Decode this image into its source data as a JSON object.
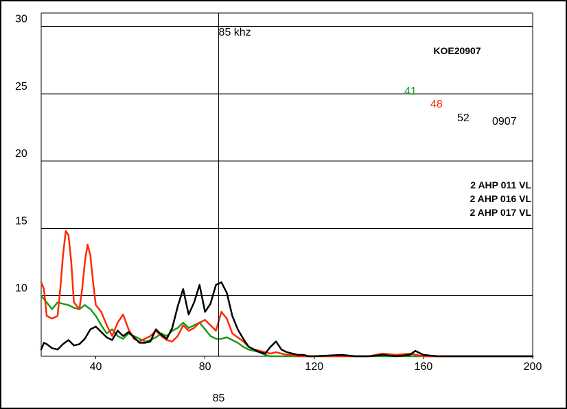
{
  "chart_data": {
    "type": "line",
    "id_label": "KOE20907",
    "info_lines": [
      "2 AHP 011 VL",
      "2 AHP 016 VL",
      "2 AHP 017 VL"
    ],
    "xlim": [
      20,
      200
    ],
    "ylim": [
      5.5,
      31
    ],
    "x_ticks": [
      40,
      80,
      120,
      160,
      200
    ],
    "y_ticks": [
      10,
      15,
      20,
      25,
      30
    ],
    "marker": {
      "x": 85,
      "top_label": "85 khz",
      "bottom_label": "85",
      "color": "#9a6b45"
    },
    "series_tags": [
      {
        "text": "41",
        "color": "#1a9a1a"
      },
      {
        "text": "48",
        "color": "#ff2a00"
      },
      {
        "text": "52",
        "color": "#000000"
      },
      {
        "text": "0907",
        "color": "#000000"
      }
    ],
    "series": [
      {
        "color": "#1a9a1a",
        "x": [
          20,
          22,
          24,
          26,
          28,
          30,
          32,
          34,
          36,
          38,
          40,
          42,
          44,
          46,
          48,
          50,
          52,
          54,
          56,
          58,
          60,
          62,
          64,
          66,
          68,
          70,
          72,
          74,
          76,
          78,
          80,
          82,
          84,
          86,
          88,
          90,
          92,
          94,
          96,
          98,
          100,
          102,
          104,
          106,
          108,
          110,
          112,
          114,
          116,
          118,
          120,
          130,
          140,
          150,
          160,
          170,
          180,
          190,
          200
        ],
        "y": [
          10.0,
          9.5,
          9.0,
          9.5,
          9.4,
          9.3,
          9.1,
          9.0,
          9.3,
          9.0,
          8.5,
          7.8,
          7.2,
          7.5,
          7.0,
          6.8,
          7.2,
          7.0,
          6.8,
          6.6,
          6.7,
          6.9,
          7.2,
          7.0,
          7.4,
          7.6,
          8.0,
          7.6,
          7.8,
          8.0,
          7.5,
          7.0,
          6.8,
          6.8,
          6.9,
          6.7,
          6.5,
          6.2,
          6.0,
          5.9,
          5.8,
          5.6,
          5.5,
          5.5,
          5.5,
          5.5,
          5.5,
          5.5,
          5.5,
          5.5,
          5.5,
          5.5,
          5.5,
          5.5,
          5.5,
          5.5,
          5.5,
          5.5,
          5.5
        ]
      },
      {
        "color": "#ff2a00",
        "x": [
          20,
          21,
          22,
          24,
          26,
          27,
          28,
          29,
          30,
          31,
          32,
          34,
          35,
          36,
          37,
          38,
          39,
          40,
          42,
          44,
          46,
          48,
          50,
          52,
          54,
          56,
          58,
          60,
          62,
          64,
          66,
          68,
          70,
          72,
          74,
          76,
          78,
          80,
          82,
          84,
          86,
          88,
          90,
          92,
          94,
          96,
          98,
          100,
          102,
          104,
          106,
          108,
          110,
          112,
          114,
          116,
          118,
          120,
          140,
          145,
          150,
          155,
          160,
          200
        ],
        "y": [
          11.0,
          10.5,
          8.5,
          8.3,
          8.5,
          10.5,
          13.0,
          14.8,
          14.5,
          12.5,
          9.5,
          9.0,
          10.5,
          12.5,
          13.8,
          13.0,
          11.0,
          9.3,
          8.8,
          7.8,
          7.0,
          8.0,
          8.6,
          7.5,
          6.8,
          6.6,
          6.8,
          7.0,
          7.4,
          7.0,
          6.7,
          6.6,
          7.0,
          7.8,
          7.4,
          7.6,
          8.0,
          8.2,
          7.8,
          7.4,
          8.8,
          8.3,
          7.2,
          6.9,
          6.6,
          6.2,
          6.0,
          5.9,
          5.8,
          5.7,
          5.8,
          5.7,
          5.6,
          5.6,
          5.5,
          5.5,
          5.5,
          5.5,
          5.5,
          5.7,
          5.6,
          5.7,
          5.5,
          5.5
        ]
      },
      {
        "color": "#000000",
        "x": [
          20,
          21,
          22,
          24,
          26,
          28,
          30,
          32,
          34,
          36,
          38,
          40,
          42,
          44,
          46,
          48,
          50,
          52,
          54,
          56,
          58,
          60,
          62,
          64,
          66,
          68,
          70,
          72,
          74,
          76,
          78,
          80,
          82,
          84,
          86,
          88,
          90,
          92,
          94,
          96,
          98,
          100,
          102,
          104,
          106,
          108,
          110,
          112,
          114,
          116,
          118,
          120,
          130,
          135,
          140,
          145,
          150,
          155,
          157,
          160,
          165,
          170,
          180,
          200
        ],
        "y": [
          6.0,
          6.5,
          6.4,
          6.1,
          6.0,
          6.4,
          6.7,
          6.3,
          6.4,
          6.8,
          7.5,
          7.7,
          7.3,
          6.9,
          6.7,
          7.4,
          7.0,
          7.3,
          6.9,
          6.5,
          6.5,
          6.6,
          7.5,
          7.1,
          6.8,
          7.6,
          9.2,
          10.5,
          8.6,
          9.5,
          10.8,
          8.8,
          9.4,
          10.8,
          11.0,
          10.2,
          8.5,
          7.5,
          6.8,
          6.2,
          6.0,
          5.8,
          5.7,
          6.2,
          6.6,
          6.0,
          5.8,
          5.7,
          5.6,
          5.6,
          5.5,
          5.5,
          5.6,
          5.5,
          5.5,
          5.6,
          5.5,
          5.6,
          5.9,
          5.6,
          5.5,
          5.5,
          5.5,
          5.5
        ]
      }
    ]
  }
}
